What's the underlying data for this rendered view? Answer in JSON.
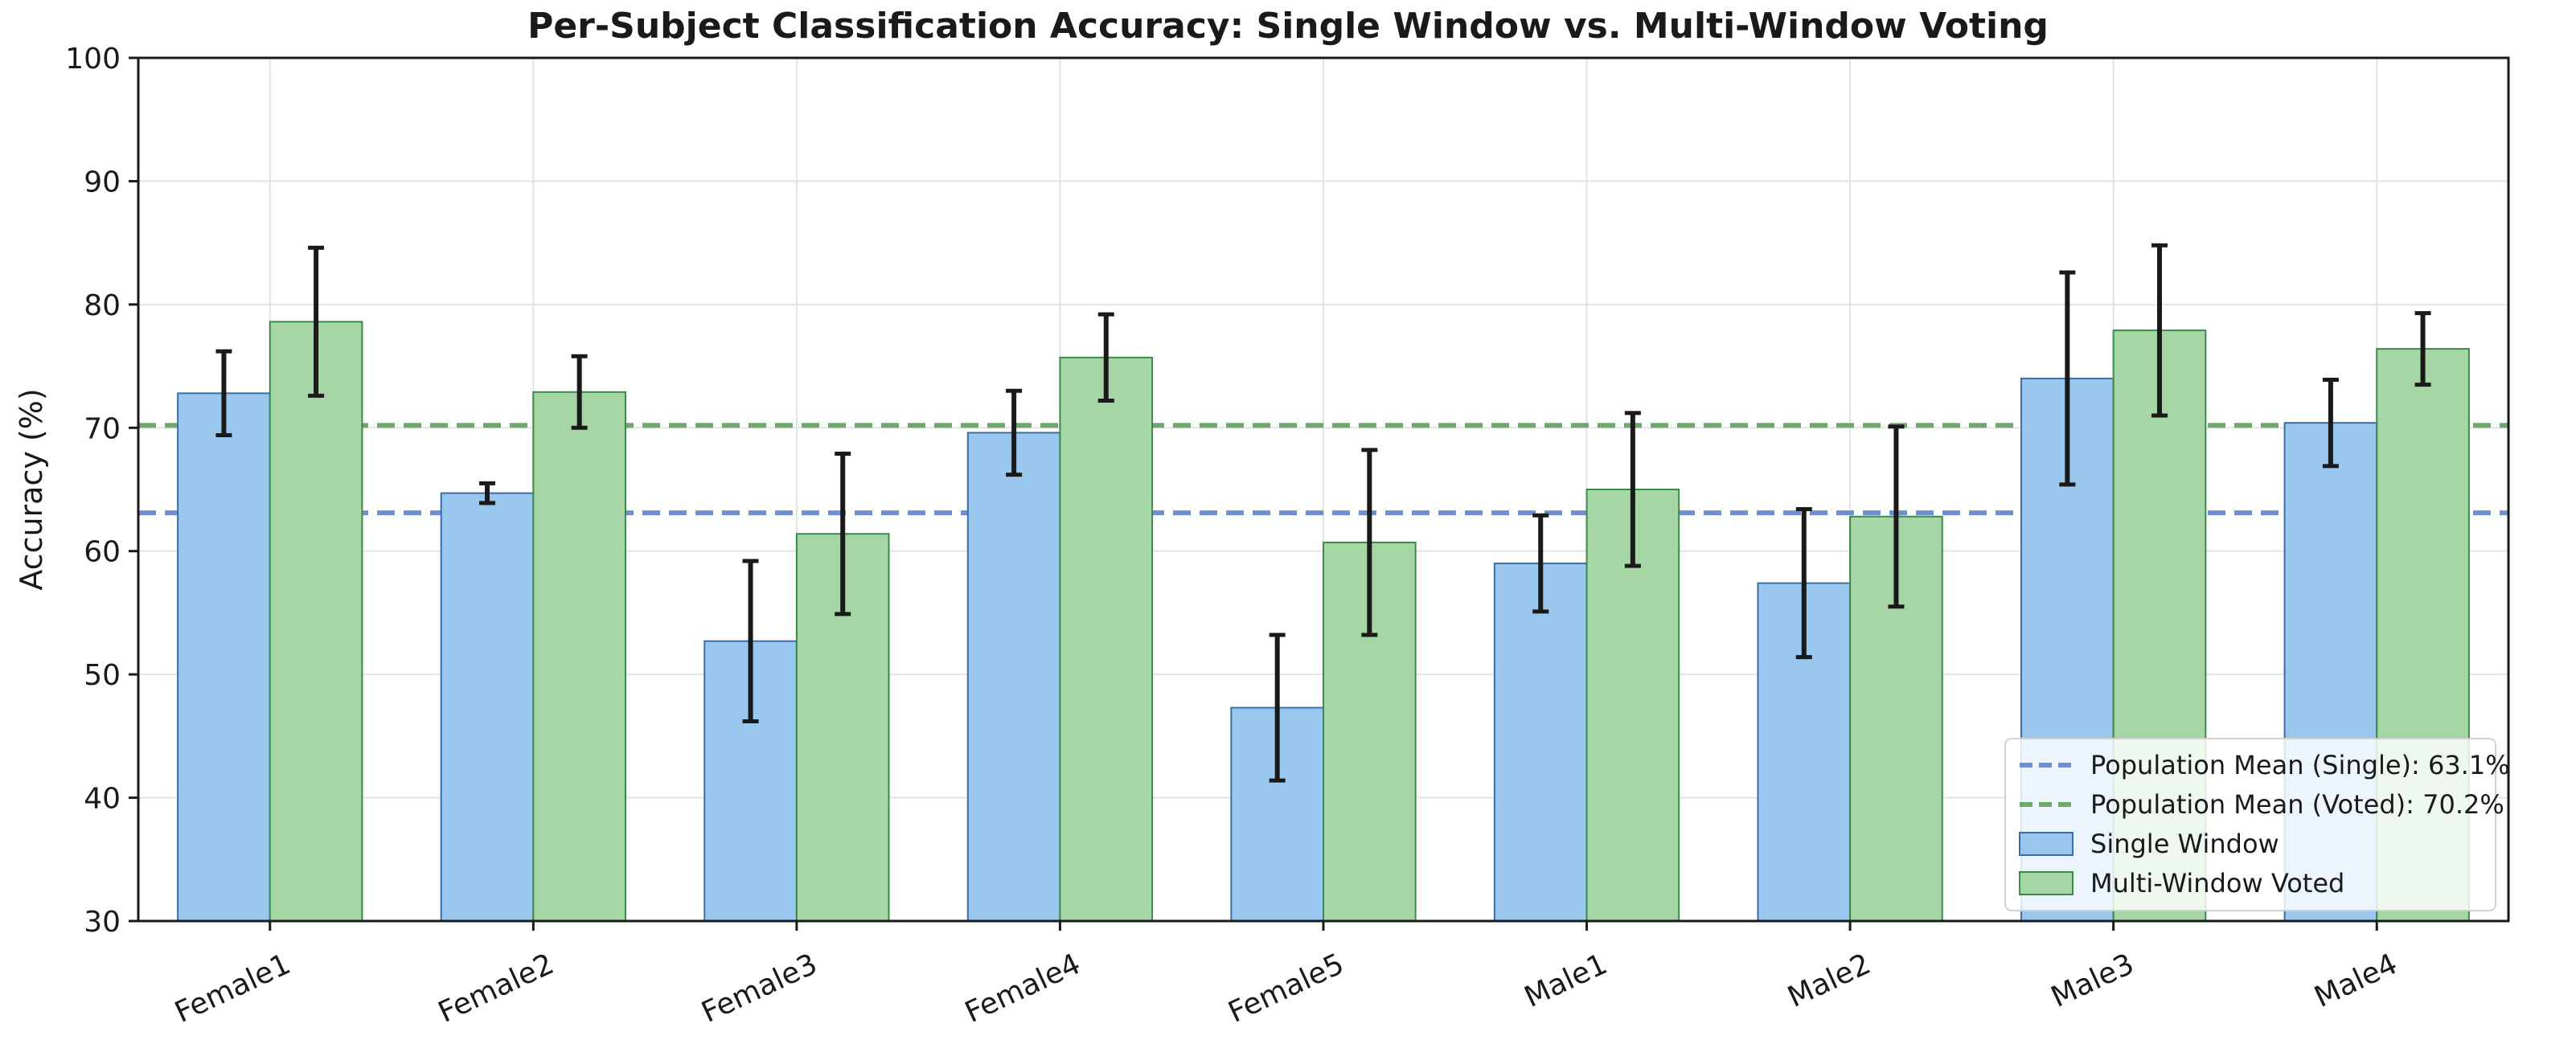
{
  "chart_data": {
    "type": "bar",
    "title": "Per-Subject Classification Accuracy: Single Window vs. Multi-Window Voting",
    "xlabel": "",
    "ylabel": "Accuracy (%)",
    "ylim": [
      30,
      100
    ],
    "yticks": [
      30,
      40,
      50,
      60,
      70,
      80,
      90,
      100
    ],
    "grid": true,
    "legend_position": "lower-right",
    "categories": [
      "Female1",
      "Female2",
      "Female3",
      "Female4",
      "Female5",
      "Male1",
      "Male2",
      "Male3",
      "Male4"
    ],
    "series": [
      {
        "name": "Single Window",
        "color": "#99c7ed",
        "edge_color": "#3a6ea5",
        "values": [
          72.8,
          64.7,
          52.7,
          69.6,
          47.3,
          59.0,
          57.4,
          74.0,
          70.4
        ],
        "errors": [
          3.4,
          0.8,
          6.5,
          3.4,
          5.9,
          3.9,
          6.0,
          8.6,
          3.5
        ]
      },
      {
        "name": "Multi-Window Voted",
        "color": "#a6d6a6",
        "edge_color": "#3b8a4a",
        "values": [
          78.6,
          72.9,
          61.4,
          75.7,
          60.7,
          65.0,
          62.8,
          77.9,
          76.4
        ],
        "errors": [
          6.0,
          2.9,
          6.5,
          3.5,
          7.5,
          6.2,
          7.3,
          6.9,
          2.9
        ]
      }
    ],
    "reference_lines": [
      {
        "label": "Population Mean (Single): 63.1%",
        "value": 63.1,
        "color": "#6f8fd0"
      },
      {
        "label": "Population Mean (Voted): 70.2%",
        "value": 70.2,
        "color": "#6fa86f"
      }
    ]
  }
}
